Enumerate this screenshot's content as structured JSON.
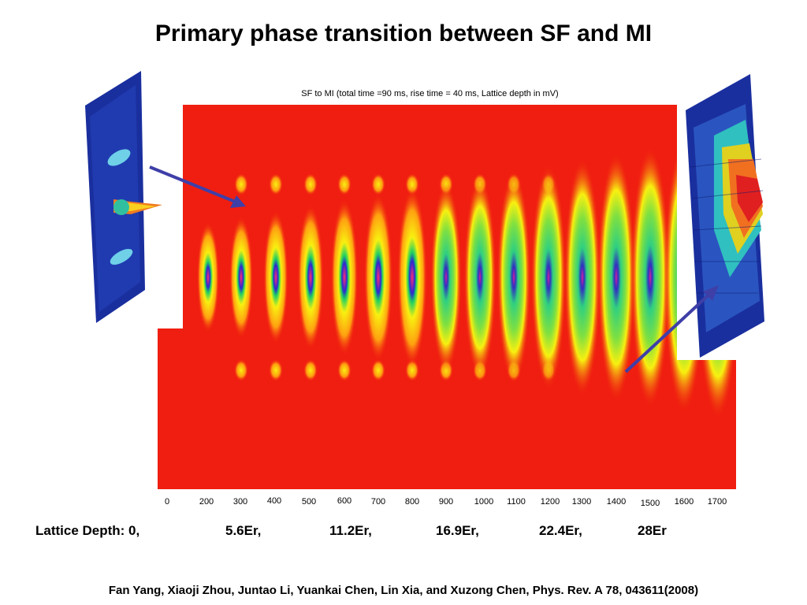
{
  "title": "Primary phase transition between SF and MI",
  "figure": {
    "caption": "SF to MI (total time =90 ms, rise time = 40 ms, Lattice depth in mV)",
    "ticks": [
      "0",
      "200",
      "300",
      "400",
      "500",
      "600",
      "700",
      "800",
      "900",
      "1000",
      "1100",
      "1200",
      "1300",
      "1400",
      "1500",
      "1600",
      "1700"
    ]
  },
  "lattice_depth": {
    "label": "Lattice Depth: 0,",
    "values": [
      "5.6Er,",
      "11.2Er,",
      "16.9Er,",
      "22.4Er,",
      "28Er"
    ]
  },
  "citation": "Fan Yang, Xiaoji Zhou, Juntao Li, Yuankai Chen, Lin Xia, and Xuzong Chen, Phys. Rev. A 78, 043611(2008)",
  "colors": {
    "background_red": "#f01e10",
    "arrow": "#3f3fa8",
    "surface_blue": "#1a2f9e"
  }
}
